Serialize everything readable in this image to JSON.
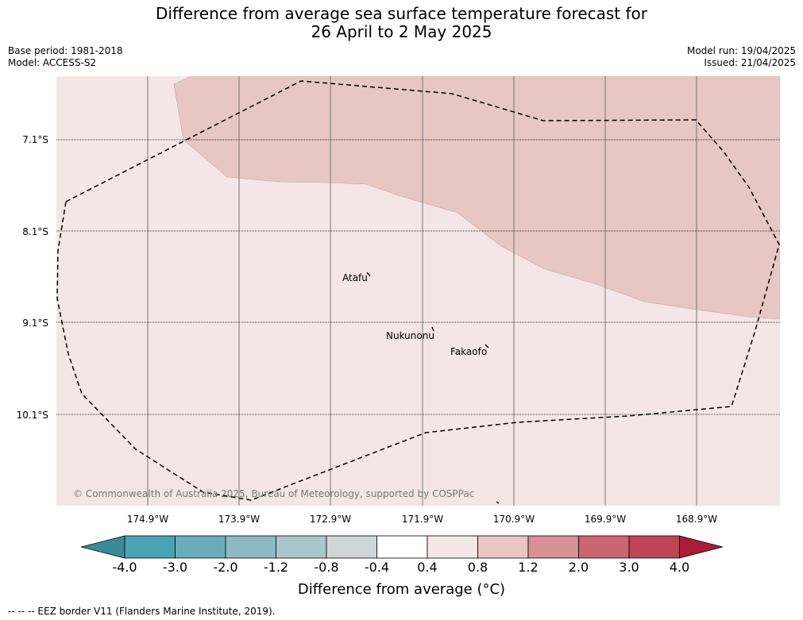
{
  "title": {
    "line1": "Difference from average sea surface temperature forecast for",
    "line2": "26 April to 2 May 2025"
  },
  "meta": {
    "base_period": "Base period: 1981-2018",
    "model": "Model: ACCESS-S2",
    "model_run": "Model run: 19/04/2025",
    "issued": "Issued: 21/04/2025"
  },
  "map": {
    "copyright": "© Commonwealth of Australia 2025, Bureau of Meteorology, supported by COSPPac",
    "places": [
      "Atafu",
      "Nukunonu",
      "Fakaofo"
    ],
    "lat_labels": [
      "7.1°S",
      "8.1°S",
      "9.1°S",
      "10.1°S"
    ],
    "lon_labels": [
      "174.9°W",
      "173.9°W",
      "172.9°W",
      "171.9°W",
      "170.9°W",
      "169.9°W",
      "168.9°W"
    ],
    "colors": {
      "background_anomaly": "#f4e6e6",
      "warm_anomaly": "#e7c6c3",
      "grid": "#888888"
    }
  },
  "colorbar": {
    "ticks": [
      "-4.0",
      "-3.0",
      "-2.0",
      "-1.2",
      "-0.8",
      "-0.4",
      "0.4",
      "0.8",
      "1.2",
      "2.0",
      "3.0",
      "4.0"
    ],
    "colors": [
      "#3a8a97",
      "#47a3b5",
      "#6aacbc",
      "#8db9c4",
      "#a9c6cc",
      "#d0d5d7",
      "#ffffff",
      "#f4e6e6",
      "#e7c6c3",
      "#d88f96",
      "#cb6570",
      "#bd4556",
      "#a91c3a"
    ],
    "label": "Difference from average (°C)"
  },
  "footer": "-- -- -- EEZ border V11 (Flanders Marine Institute, 2019)."
}
